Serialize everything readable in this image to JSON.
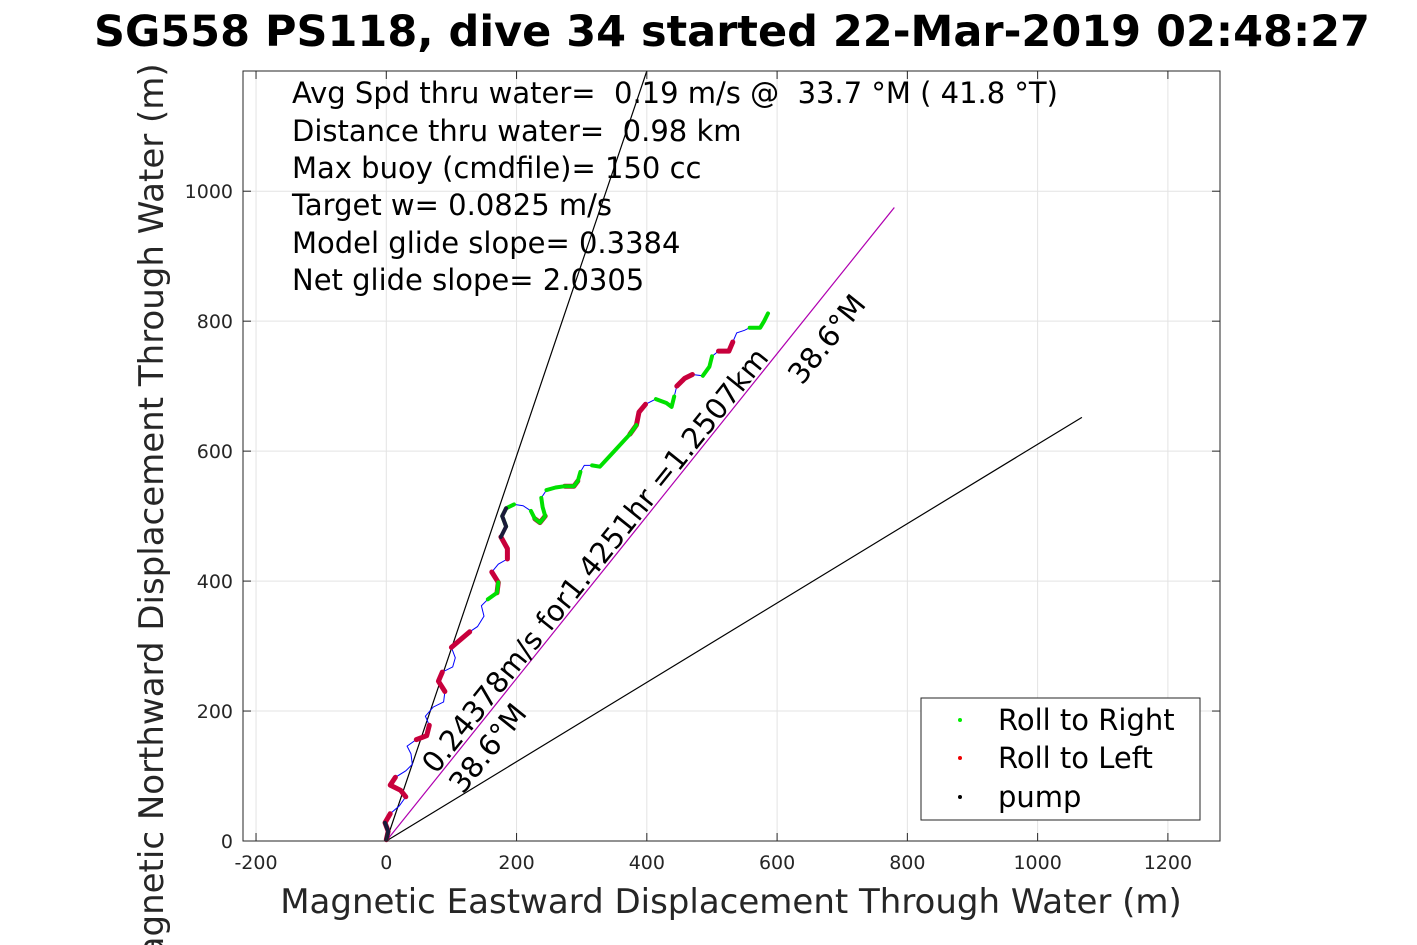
{
  "chart_data": {
    "type": "line",
    "title": "SG558 PS118, dive 34 started 22-Mar-2019 02:48:27",
    "xlabel": "Magnetic Eastward Displacement Through Water (m)",
    "ylabel": "Magnetic Northward Displacement Through Water (m)",
    "xlim": [
      -220,
      1280
    ],
    "ylim": [
      0,
      1185
    ],
    "xticks": [
      "-200",
      "0",
      "200",
      "400",
      "600",
      "800",
      "1000",
      "1200"
    ],
    "xtick_values": [
      -200,
      0,
      200,
      400,
      600,
      800,
      1000,
      1200
    ],
    "yticks": [
      "0",
      "200",
      "400",
      "600",
      "800",
      "1000"
    ],
    "ytick_values": [
      0,
      200,
      400,
      600,
      800,
      1000
    ],
    "grid": true,
    "legend_position": "bottom-right",
    "annotations": [
      "Avg Spd thru water=  0.19 m/s @  33.7 °M ( 41.8 °T)",
      "Distance thru water=  0.98 km",
      "Max buoy (cmdfile)= 150 cc",
      "Target w= 0.0825 m/s",
      "Model glide slope= 0.3384",
      "Net glide slope= 2.0305"
    ],
    "rotated_labels": {
      "along_track": "0.24378m/s for1.4251hr =1.2507km",
      "heading_near": "38.6°M",
      "heading_far": "38.6°M"
    },
    "legend": [
      {
        "label": "Roll to Right",
        "color": "#00ee00"
      },
      {
        "label": "Roll to Left",
        "color": "#ee0000"
      },
      {
        "label": "pump",
        "color": "#000000"
      }
    ],
    "reference_lines": [
      {
        "color": "#000000",
        "points": [
          [
            0,
            0
          ],
          [
            400,
            1185
          ]
        ]
      },
      {
        "color": "#000000",
        "points": [
          [
            0,
            0
          ],
          [
            1068,
            652
          ]
        ]
      },
      {
        "color": "#b000b0",
        "points": [
          [
            0,
            0
          ],
          [
            780,
            975
          ]
        ]
      }
    ],
    "track": {
      "color": "#0000ff",
      "points": [
        [
          0,
          2
        ],
        [
          3,
          15
        ],
        [
          -2,
          28
        ],
        [
          6,
          42
        ],
        [
          20,
          54
        ],
        [
          30,
          68
        ],
        [
          22,
          78
        ],
        [
          6,
          86
        ],
        [
          14,
          98
        ],
        [
          30,
          108
        ],
        [
          40,
          118
        ],
        [
          38,
          134
        ],
        [
          32,
          146
        ],
        [
          46,
          156
        ],
        [
          62,
          162
        ],
        [
          66,
          178
        ],
        [
          60,
          192
        ],
        [
          72,
          206
        ],
        [
          88,
          214
        ],
        [
          90,
          230
        ],
        [
          80,
          246
        ],
        [
          86,
          260
        ],
        [
          102,
          268
        ],
        [
          106,
          282
        ],
        [
          100,
          298
        ],
        [
          114,
          310
        ],
        [
          128,
          322
        ],
        [
          140,
          330
        ],
        [
          150,
          346
        ],
        [
          146,
          362
        ],
        [
          156,
          372
        ],
        [
          170,
          382
        ],
        [
          172,
          398
        ],
        [
          162,
          414
        ],
        [
          172,
          426
        ],
        [
          186,
          434
        ],
        [
          186,
          450
        ],
        [
          176,
          468
        ],
        [
          184,
          484
        ],
        [
          178,
          500
        ],
        [
          184,
          512
        ],
        [
          196,
          518
        ],
        [
          210,
          516
        ],
        [
          222,
          508
        ],
        [
          228,
          496
        ],
        [
          236,
          490
        ],
        [
          244,
          500
        ],
        [
          240,
          514
        ],
        [
          238,
          528
        ],
        [
          246,
          540
        ],
        [
          260,
          544
        ],
        [
          274,
          546
        ],
        [
          288,
          546
        ],
        [
          294,
          554
        ],
        [
          298,
          568
        ],
        [
          304,
          578
        ],
        [
          316,
          578
        ],
        [
          328,
          576
        ],
        [
          350,
          600
        ],
        [
          374,
          626
        ],
        [
          384,
          640
        ],
        [
          388,
          660
        ],
        [
          398,
          672
        ],
        [
          414,
          680
        ],
        [
          430,
          674
        ],
        [
          438,
          668
        ],
        [
          442,
          684
        ],
        [
          446,
          700
        ],
        [
          458,
          712
        ],
        [
          470,
          718
        ],
        [
          486,
          716
        ],
        [
          496,
          730
        ],
        [
          500,
          746
        ],
        [
          510,
          754
        ],
        [
          526,
          754
        ],
        [
          532,
          768
        ],
        [
          538,
          782
        ],
        [
          550,
          786
        ],
        [
          558,
          790
        ],
        [
          574,
          790
        ],
        [
          580,
          800
        ],
        [
          586,
          812
        ]
      ]
    },
    "roll_right_segments": [
      [
        38,
        41
      ],
      [
        43,
        48
      ],
      [
        49,
        54
      ],
      [
        56,
        60
      ],
      [
        63,
        66
      ],
      [
        70,
        72
      ],
      [
        78,
        82
      ],
      [
        30,
        32
      ]
    ],
    "roll_left_segments": [
      [
        0,
        3
      ],
      [
        5,
        8
      ],
      [
        13,
        15
      ],
      [
        19,
        21
      ],
      [
        24,
        26
      ],
      [
        31,
        33
      ],
      [
        35,
        37
      ],
      [
        44,
        46
      ],
      [
        51,
        53
      ],
      [
        59,
        62
      ],
      [
        67,
        69
      ],
      [
        73,
        75
      ]
    ],
    "pump_segments": [
      [
        37,
        40
      ],
      [
        0,
        2
      ]
    ],
    "legend_marker_color_pump": "#000000"
  }
}
